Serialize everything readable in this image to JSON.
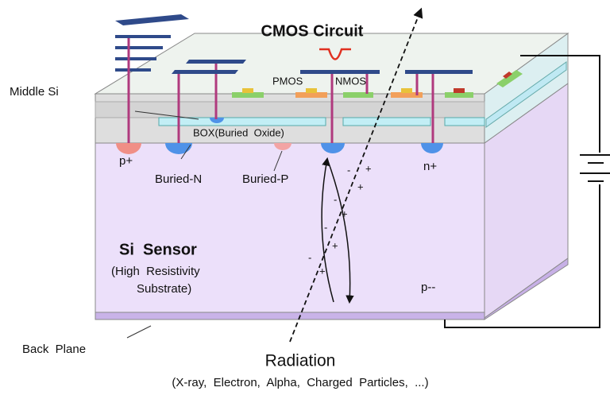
{
  "title": "CMOS Circuit",
  "transistors": [
    "PMOS",
    "NMOS"
  ],
  "layers": {
    "middle_si": "Middle Si",
    "box": "BOX(Buried  Oxide)",
    "back_plane": "Back  Plane"
  },
  "implants": {
    "p_plus": "p+",
    "buried_n": "Buried-N",
    "buried_p": "Buried-P",
    "n_plus": "n+",
    "p_minus": "p--"
  },
  "sensor": {
    "name": "Si  Sensor",
    "line1": "(High  Resistivity",
    "line2": "Substrate)"
  },
  "radiation": {
    "name": "Radiation",
    "kinds": "(X-ray,  Electron,  Alpha,  Charged  Particles,  ...)"
  },
  "charges": [
    "-",
    "+",
    "+",
    "-",
    "+",
    "-",
    "+",
    "-",
    "+"
  ]
}
